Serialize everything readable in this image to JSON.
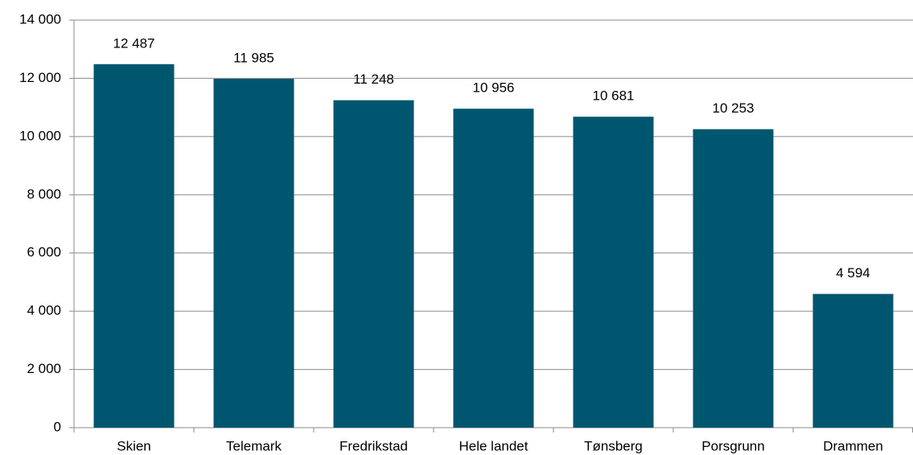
{
  "chart_data": {
    "type": "bar",
    "categories": [
      "Skien",
      "Telemark",
      "Fredrikstad",
      "Hele landet",
      "Tønsberg",
      "Porsgrunn",
      "Drammen"
    ],
    "values": [
      12487,
      11985,
      11248,
      10956,
      10681,
      10253,
      4594
    ],
    "value_labels": [
      "12 487",
      "11 985",
      "11 248",
      "10 956",
      "10 681",
      "10 253",
      "4 594"
    ],
    "color": "#00566e",
    "ylim": [
      0,
      14000
    ],
    "yticks": [
      0,
      {
        "value": 2000,
        "label": "2 000"
      },
      {
        "value": 4000,
        "label": "4 000"
      },
      {
        "value": 6000,
        "label": "6 000"
      },
      {
        "value": 8000,
        "label": "8 000"
      },
      {
        "value": 10000,
        "label": "10 000"
      },
      {
        "value": 12000,
        "label": "12 000"
      },
      {
        "value": 14000,
        "label": "14 000"
      }
    ],
    "grid": true
  }
}
